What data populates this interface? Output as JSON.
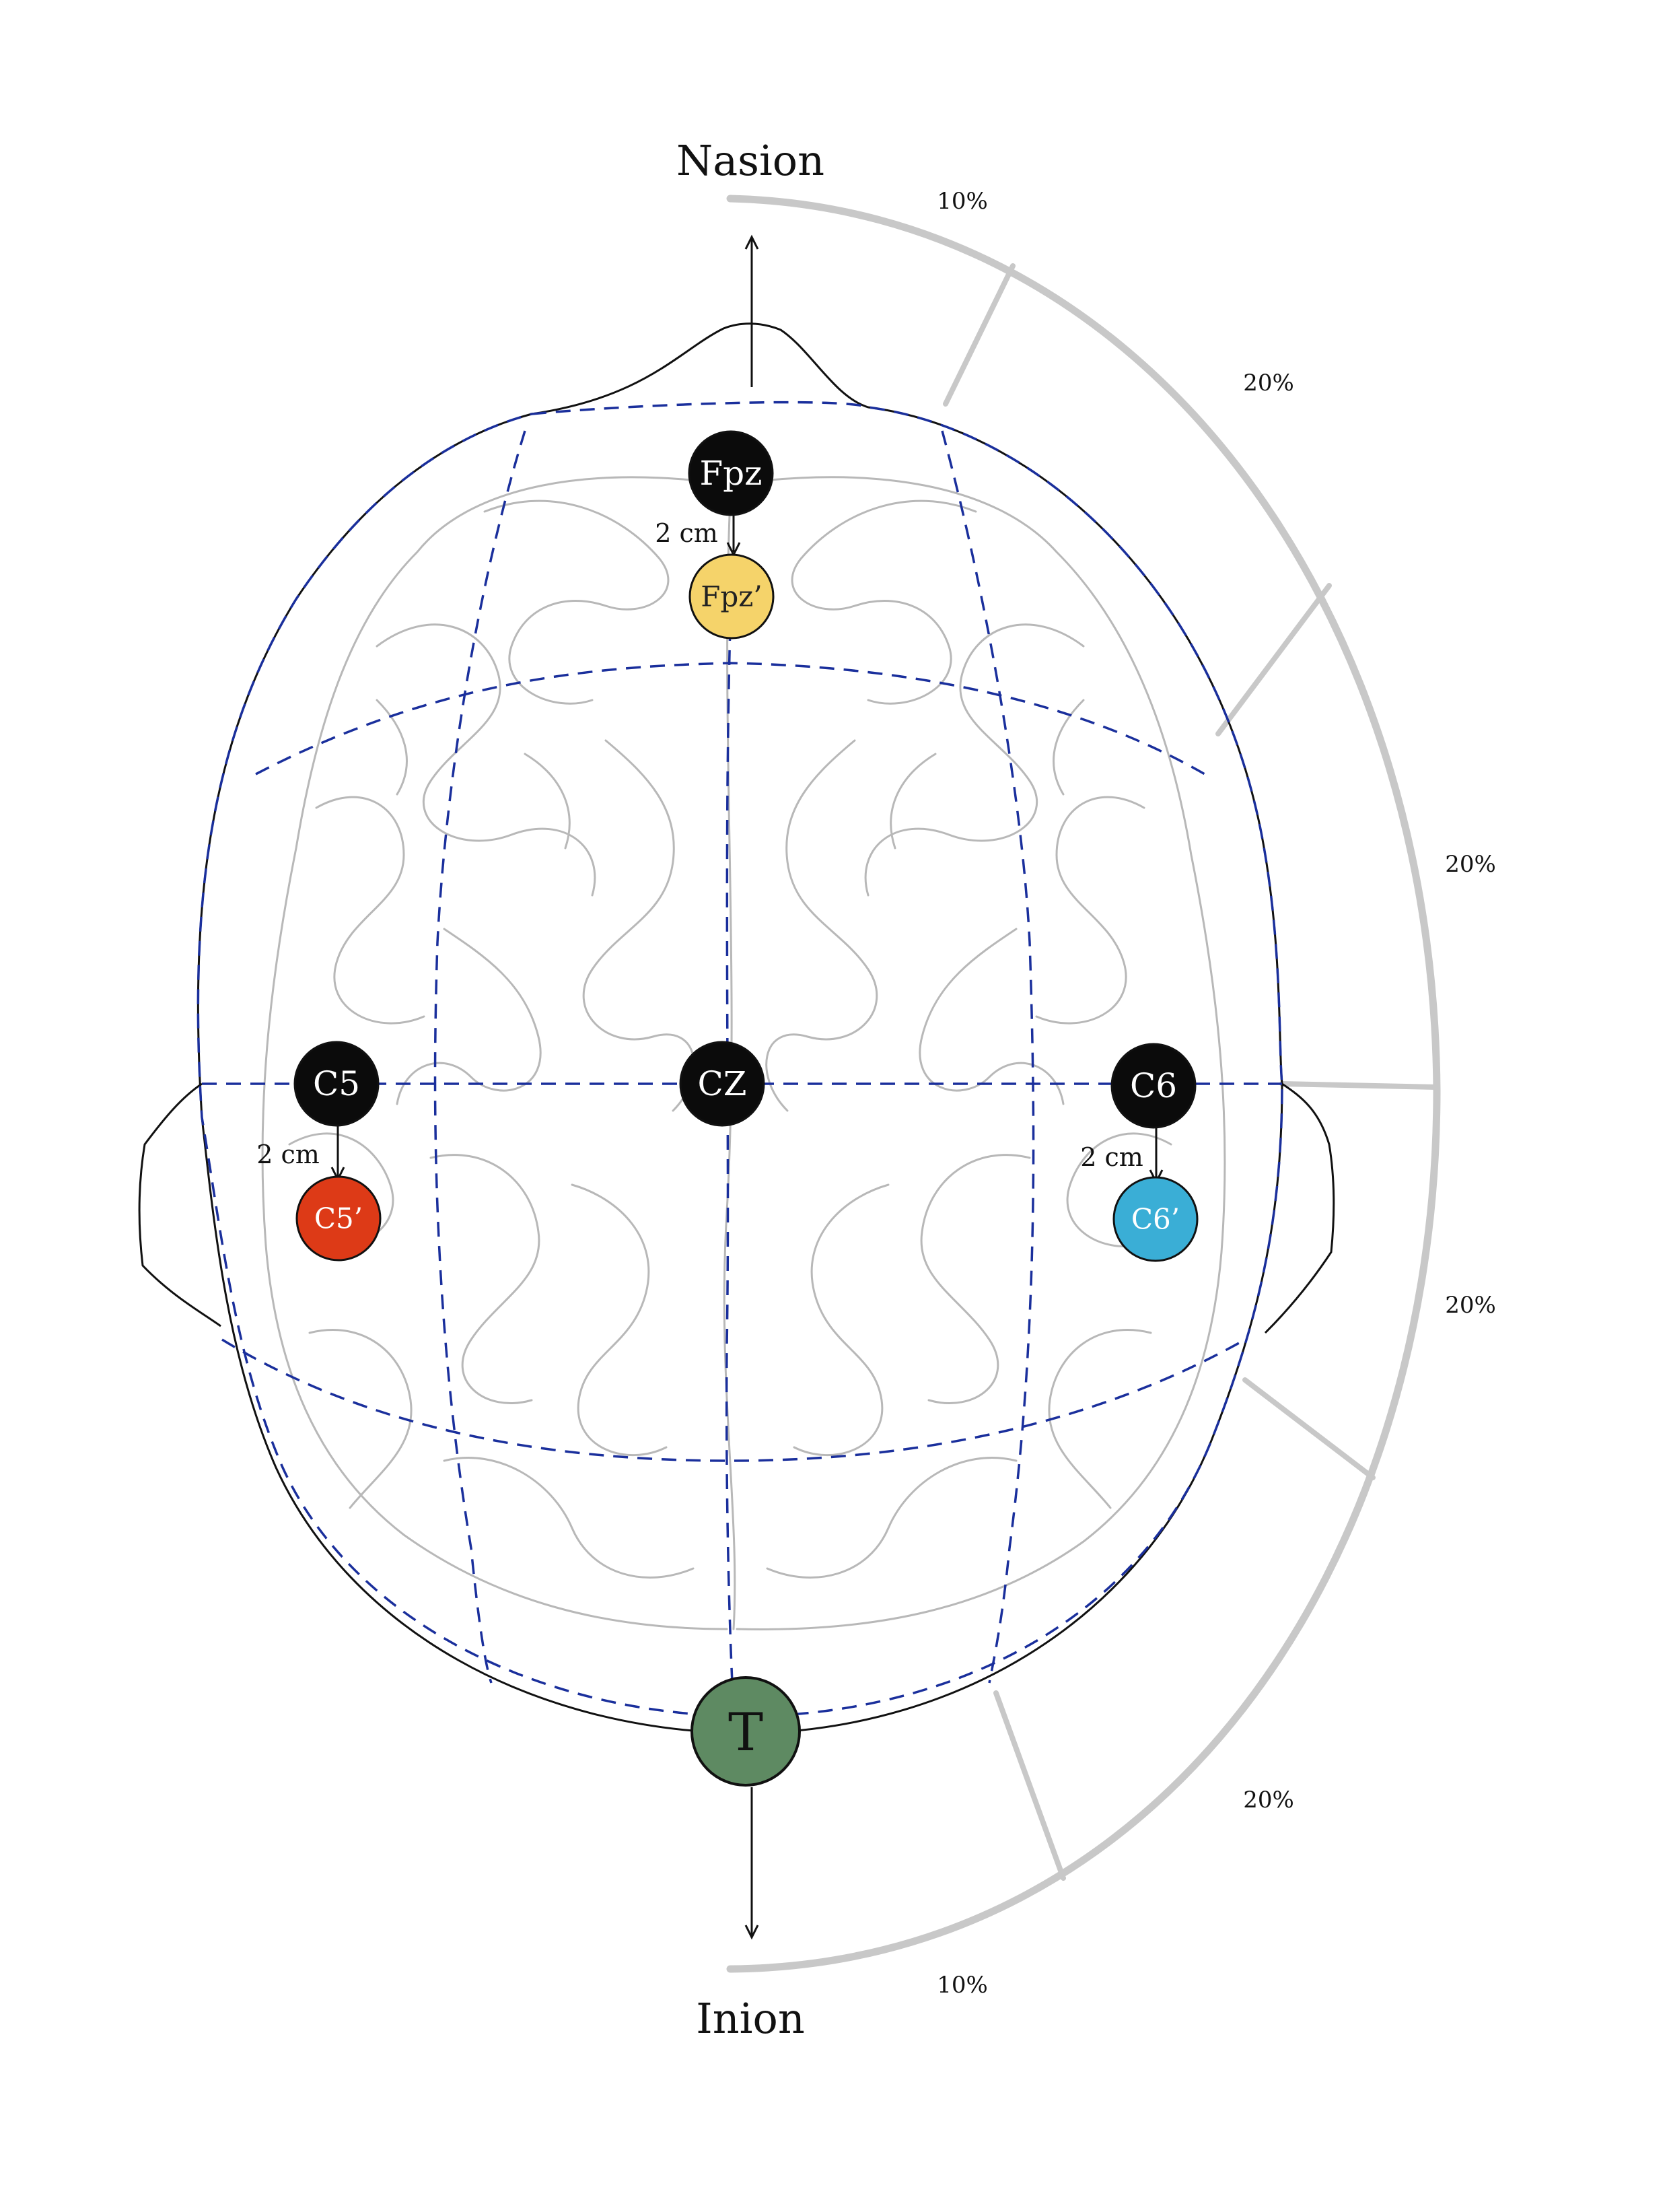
{
  "landmarks": {
    "top": "Nasion",
    "bottom": "Inion"
  },
  "percentages": {
    "top_10": "10%",
    "seg_1": "20%",
    "seg_2": "20%",
    "seg_3": "20%",
    "seg_4": "20%",
    "bottom_10": "10%"
  },
  "offsets": {
    "fpz": "2 cm",
    "c5": "2 cm",
    "c6": "2 cm"
  },
  "electrodes": {
    "fpz": {
      "label": "Fpz",
      "color": "#0b0b0b",
      "text_color": "#ffffff"
    },
    "fpz_prime": {
      "label": "Fpz’",
      "color": "#f5d36a",
      "text_color": "#222222"
    },
    "c5": {
      "label": "C5",
      "color": "#0b0b0b",
      "text_color": "#ffffff"
    },
    "c5_prime": {
      "label": "C5’",
      "color": "#dd3a17",
      "text_color": "#ffffff"
    },
    "cz": {
      "label": "CZ",
      "color": "#0b0b0b",
      "text_color": "#ffffff"
    },
    "c6": {
      "label": "C6",
      "color": "#0b0b0b",
      "text_color": "#ffffff"
    },
    "c6_prime": {
      "label": "C6’",
      "color": "#3aaed6",
      "text_color": "#ffffff"
    },
    "t": {
      "label": "T",
      "color": "#5e8a62",
      "text_color": "#111111"
    }
  },
  "colors": {
    "grid": "#1a2f9c",
    "arc": "#c8c8c8",
    "outline": "#111111",
    "brain": "#b8b8b8"
  }
}
